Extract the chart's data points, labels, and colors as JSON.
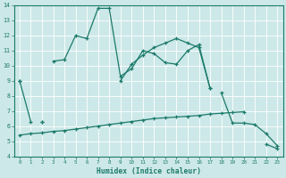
{
  "xlabel": "Humidex (Indice chaleur)",
  "x_values": [
    0,
    1,
    2,
    3,
    4,
    5,
    6,
    7,
    8,
    9,
    10,
    11,
    12,
    13,
    14,
    15,
    16,
    17,
    18,
    19,
    20,
    21,
    22,
    23
  ],
  "line1": [
    9.0,
    6.3,
    null,
    10.3,
    10.4,
    12.0,
    11.8,
    13.8,
    13.8,
    9.3,
    9.8,
    11.0,
    10.8,
    10.2,
    10.1,
    11.0,
    11.4,
    8.5,
    null,
    null,
    null,
    null,
    null,
    null
  ],
  "line2": [
    null,
    null,
    6.3,
    null,
    null,
    null,
    null,
    null,
    null,
    null,
    null,
    null,
    null,
    null,
    null,
    null,
    null,
    null,
    8.2,
    6.2,
    6.2,
    6.1,
    5.5,
    4.7
  ],
  "line3_x": [
    0,
    1,
    2,
    3,
    4,
    5,
    6,
    7,
    8,
    9,
    10,
    11,
    12,
    13,
    14,
    15,
    16,
    17,
    18,
    19,
    20,
    21,
    22,
    23
  ],
  "line3": [
    5.4,
    5.5,
    5.55,
    5.65,
    5.7,
    5.8,
    5.9,
    6.0,
    6.1,
    6.2,
    6.3,
    6.4,
    6.5,
    6.55,
    6.6,
    6.65,
    6.7,
    6.8,
    6.85,
    6.9,
    6.95,
    null,
    null,
    null
  ],
  "line4_x": [
    0,
    1,
    2,
    3,
    4,
    5,
    6,
    7,
    8,
    9,
    10,
    11,
    12,
    13,
    14,
    15,
    16,
    17,
    18,
    19,
    20,
    21,
    22,
    23
  ],
  "line4": [
    9.0,
    null,
    6.3,
    null,
    null,
    null,
    null,
    null,
    null,
    9.0,
    10.1,
    10.7,
    11.2,
    11.5,
    11.8,
    11.5,
    11.2,
    8.5,
    null,
    null,
    null,
    null,
    4.8,
    4.5
  ],
  "color": "#1a7a6a",
  "bg_color": "#cde8e8",
  "grid_color": "#b8d8d8",
  "ylim": [
    4,
    14
  ],
  "xlim": [
    -0.5,
    23.5
  ],
  "yticks": [
    4,
    5,
    6,
    7,
    8,
    9,
    10,
    11,
    12,
    13,
    14
  ],
  "xticks": [
    0,
    1,
    2,
    3,
    4,
    5,
    6,
    7,
    8,
    9,
    10,
    11,
    12,
    13,
    14,
    15,
    16,
    17,
    18,
    19,
    20,
    21,
    22,
    23
  ]
}
